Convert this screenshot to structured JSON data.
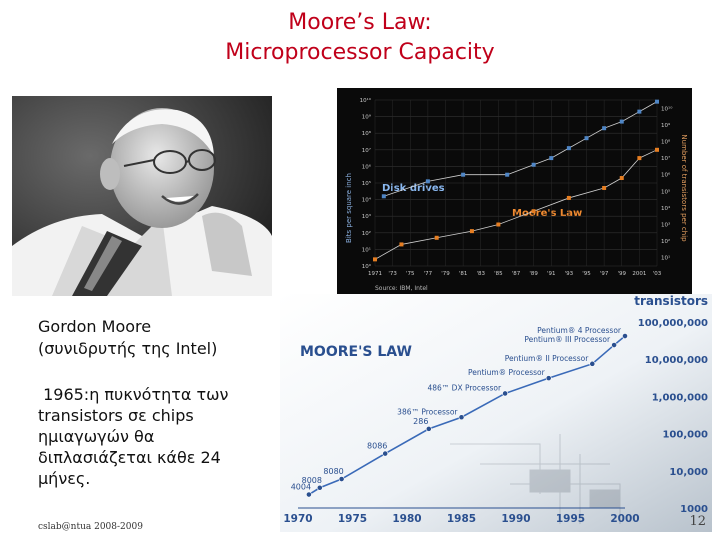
{
  "slide": {
    "title_line1": "Moore’s Law:",
    "title_line2": "Microprocessor Capacity",
    "caption_line1": "Gordon Moore",
    "caption_line2": "(συνιδρυτής της Intel)",
    "body_lines": [
      " 1965:η πυκνότητα των",
      "transistors σε chips",
      "ημιαγωγών θα",
      "διπλασιάζεται κάθε 24",
      "μήνες."
    ],
    "footer": "cslab@ntua 2008-2009",
    "page_number": "12"
  },
  "chart_data": [
    {
      "type": "line",
      "source": "Source: IBM, Intel",
      "x_ticks": [
        "1971",
        "'73",
        "'75",
        "'77",
        "'79",
        "'81",
        "'83",
        "'85",
        "'87",
        "'89",
        "'91",
        "'93",
        "'95",
        "'97",
        "'99",
        "2001",
        "'03"
      ],
      "y_left_ticks": [
        "10⁰",
        "10¹",
        "10²",
        "10³",
        "10⁴",
        "10⁵",
        "10⁶",
        "10⁷",
        "10⁸",
        "10⁹",
        "10¹⁰"
      ],
      "y_right_ticks": [
        "10¹",
        "10²",
        "10³",
        "10⁴",
        "10⁵",
        "10⁶",
        "10⁷",
        "10⁸",
        "10⁹",
        "10¹⁰"
      ],
      "left_axis_label": "Bits per square inch",
      "right_axis_label": "Number of transistors per chip",
      "series": [
        {
          "name": "Disk drives",
          "color": "#4f86c6",
          "x": [
            1972,
            1977,
            1981,
            1986,
            1989,
            1991,
            1993,
            1995,
            1997,
            1999,
            2001,
            2003
          ],
          "y": [
            4.2,
            5.1,
            5.5,
            5.5,
            6.1,
            6.5,
            7.1,
            7.7,
            8.3,
            8.7,
            9.3,
            9.9
          ]
        },
        {
          "name": "Moore's Law",
          "color": "#e67e22",
          "x": [
            1971,
            1974,
            1978,
            1982,
            1985,
            1989,
            1993,
            1997,
            1999,
            2001,
            2003
          ],
          "y": [
            0.4,
            1.3,
            1.7,
            2.1,
            2.5,
            3.3,
            4.1,
            4.7,
            5.3,
            6.5,
            7.0
          ]
        }
      ]
    },
    {
      "type": "line",
      "title": "MOORE'S LAW",
      "unit_label": "transistors",
      "x_ticks": [
        "1970",
        "1975",
        "1980",
        "1985",
        "1990",
        "1995",
        "2000"
      ],
      "y_ticks": [
        "1000",
        "10,000",
        "100,000",
        "1,000,000",
        "10,000,000",
        "100,000,000"
      ],
      "processors": [
        {
          "name": "4004",
          "year": 1971,
          "transistors": 2300
        },
        {
          "name": "8008",
          "year": 1972,
          "transistors": 3500
        },
        {
          "name": "8080",
          "year": 1974,
          "transistors": 6000
        },
        {
          "name": "8086",
          "year": 1978,
          "transistors": 29000
        },
        {
          "name": "286",
          "year": 1982,
          "transistors": 134000
        },
        {
          "name": "386™ Processor",
          "year": 1985,
          "transistors": 275000
        },
        {
          "name": "486™ DX Processor",
          "year": 1989,
          "transistors": 1200000
        },
        {
          "name": "Pentium® Processor",
          "year": 1993,
          "transistors": 3100000
        },
        {
          "name": "Pentium® II Processor",
          "year": 1997,
          "transistors": 7500000
        },
        {
          "name": "Pentium® III Processor",
          "year": 1999,
          "transistors": 24000000
        },
        {
          "name": "Pentium® 4 Processor",
          "year": 2000,
          "transistors": 42000000
        }
      ]
    }
  ]
}
